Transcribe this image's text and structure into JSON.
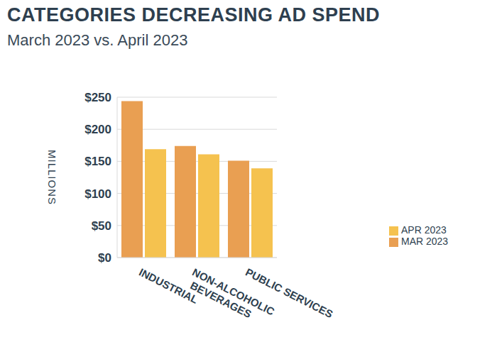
{
  "chart_data": {
    "type": "bar",
    "title": "CATEGORIES DECREASING AD SPEND",
    "subtitle": "March 2023 vs. April 2023",
    "y_label": "MILLIONS",
    "categories": [
      "INDUSTRIAL",
      "NON-ALCOHOLIC BEVERAGES",
      "PUBLIC SERVICES"
    ],
    "series": [
      {
        "name": "MAR 2023",
        "color": "#E99F52",
        "values": [
          244,
          174,
          151
        ]
      },
      {
        "name": "APR 2023",
        "color": "#F5C24F",
        "values": [
          169,
          161,
          139
        ]
      }
    ],
    "ylim": [
      0,
      250
    ],
    "yticks": [
      {
        "value": 0,
        "label": "$0"
      },
      {
        "value": 50,
        "label": "$50"
      },
      {
        "value": 100,
        "label": "$100"
      },
      {
        "value": 150,
        "label": "$150"
      },
      {
        "value": 200,
        "label": "$200"
      },
      {
        "value": 250,
        "label": "$250"
      }
    ],
    "grid": true,
    "legend": "right"
  }
}
